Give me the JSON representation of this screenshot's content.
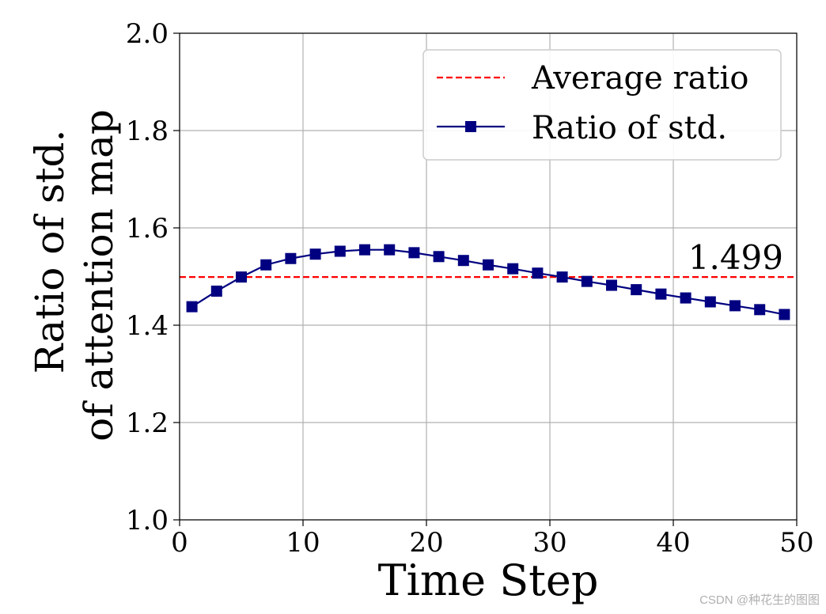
{
  "chart_data": {
    "type": "line",
    "xlabel": "Time Step",
    "ylabel_lines": [
      "Ratio of std.",
      "of attention map"
    ],
    "xlim": [
      0,
      50
    ],
    "ylim": [
      1.0,
      2.0
    ],
    "x_ticks": [
      0,
      10,
      20,
      30,
      40,
      50
    ],
    "y_ticks": [
      1.0,
      1.2,
      1.4,
      1.6,
      1.8,
      2.0
    ],
    "x_tick_labels": [
      "0",
      "10",
      "20",
      "30",
      "40",
      "50"
    ],
    "y_tick_labels": [
      "1.0",
      "1.2",
      "1.4",
      "1.6",
      "1.8",
      "2.0"
    ],
    "grid": true,
    "legend_position": "top-right",
    "series": [
      {
        "name": "Ratio of std.",
        "color": "#000080",
        "marker": "square",
        "x": [
          1,
          3,
          5,
          7,
          9,
          11,
          13,
          15,
          17,
          19,
          21,
          23,
          25,
          27,
          29,
          31,
          33,
          35,
          37,
          39,
          41,
          43,
          45,
          47,
          49
        ],
        "y": [
          1.438,
          1.47,
          1.499,
          1.524,
          1.537,
          1.546,
          1.552,
          1.555,
          1.555,
          1.549,
          1.541,
          1.533,
          1.524,
          1.516,
          1.507,
          1.499,
          1.49,
          1.482,
          1.473,
          1.464,
          1.456,
          1.448,
          1.44,
          1.432,
          1.422
        ]
      }
    ],
    "reference_line": {
      "name": "Average ratio",
      "value": 1.499,
      "color": "#ff0000",
      "style": "dashed",
      "label": "1.499"
    }
  },
  "watermark": "CSDN @种花生的图图"
}
